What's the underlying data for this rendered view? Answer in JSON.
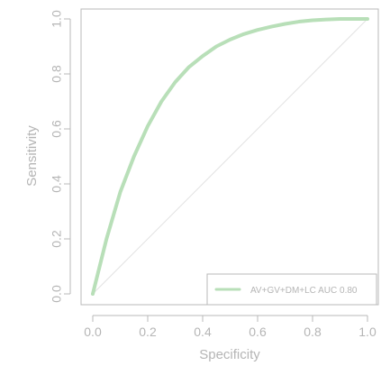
{
  "chart_data": {
    "type": "line",
    "xlabel": "Specificity",
    "ylabel": "Sensitivity",
    "xlim": [
      0,
      1
    ],
    "ylim": [
      0,
      1
    ],
    "x_ticks": [
      "0.0",
      "0.2",
      "0.4",
      "0.6",
      "0.8",
      "1.0"
    ],
    "y_ticks": [
      "0.0",
      "0.2",
      "0.4",
      "0.6",
      "0.8",
      "1.0"
    ],
    "grid": false,
    "legend_position": "bottom-right",
    "reference_line": {
      "x": [
        0,
        1
      ],
      "y": [
        0,
        1
      ]
    },
    "series": [
      {
        "name": "AV+GV+DM+LC AUC 0.80",
        "color": "#b8dfb8",
        "x": [
          0.0,
          0.05,
          0.1,
          0.15,
          0.2,
          0.25,
          0.3,
          0.35,
          0.4,
          0.45,
          0.5,
          0.55,
          0.6,
          0.65,
          0.7,
          0.75,
          0.8,
          0.85,
          0.9,
          0.95,
          1.0
        ],
        "y": [
          0.0,
          0.2,
          0.37,
          0.5,
          0.61,
          0.7,
          0.77,
          0.825,
          0.865,
          0.9,
          0.925,
          0.945,
          0.96,
          0.972,
          0.982,
          0.99,
          0.995,
          0.998,
          1.0,
          1.0,
          1.0
        ]
      }
    ]
  }
}
